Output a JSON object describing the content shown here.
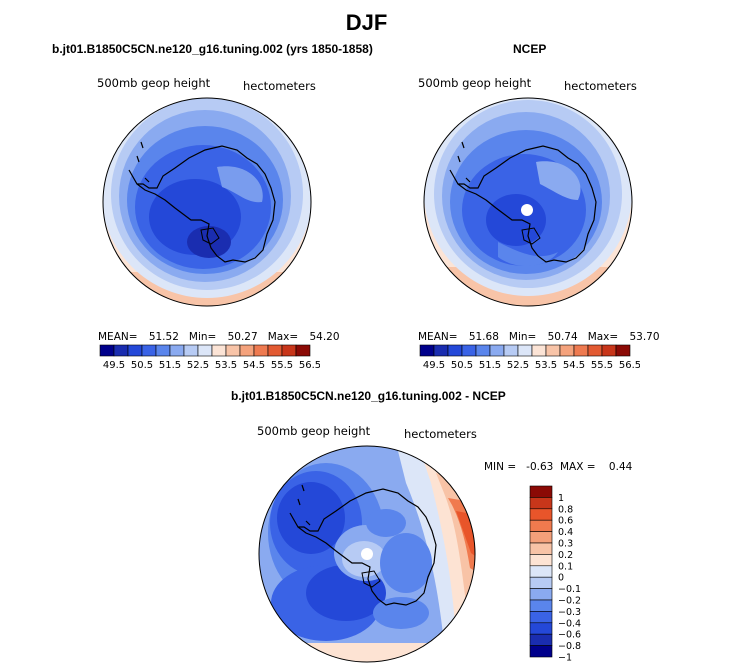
{
  "title": "DJF",
  "panels": [
    {
      "subtitle": "b.jt01.B1850C5CN.ne120_g16.tuning.002 (yrs 1850-1858)",
      "variable": "500mb geop height",
      "units": "hectometers",
      "stats": {
        "mean_label": "MEAN=",
        "mean": "51.52",
        "min_label": "Min=",
        "min": "50.27",
        "max_label": "Max=",
        "max": "54.20"
      },
      "colorbar_ticks": [
        "49.5",
        "50.5",
        "51.5",
        "52.5",
        "53.5",
        "54.5",
        "55.5",
        "56.5"
      ]
    },
    {
      "subtitle": "NCEP",
      "variable": "500mb geop height",
      "units": "hectometers",
      "stats": {
        "mean_label": "MEAN=",
        "mean": "51.68",
        "min_label": "Min=",
        "min": "50.74",
        "max_label": "Max=",
        "max": "53.70"
      },
      "colorbar_ticks": [
        "49.5",
        "50.5",
        "51.5",
        "52.5",
        "53.5",
        "54.5",
        "55.5",
        "56.5"
      ]
    }
  ],
  "diff": {
    "subtitle": "b.jt01.B1850C5CN.ne120_g16.tuning.002 - NCEP",
    "variable": "500mb geop height",
    "units": "hectometers",
    "stats": "MIN =   -0.63  MAX =    0.44",
    "colorbar_ticks": [
      "1",
      "0.8",
      "0.6",
      "0.4",
      "0.3",
      "0.2",
      "0.1",
      "0",
      "−0.1",
      "−0.2",
      "−0.3",
      "−0.4",
      "−0.6",
      "−0.8",
      "−1"
    ]
  },
  "palette": [
    "#00008b",
    "#1a2db0",
    "#2448d8",
    "#3a63e6",
    "#5a85ec",
    "#8aaaf0",
    "#b7cbf4",
    "#dce6f8",
    "#fce4d6",
    "#f8c4a8",
    "#f4a27c",
    "#ee7a50",
    "#e25a32",
    "#c8361a",
    "#8b0a05"
  ],
  "diff_palette": [
    "#8b0a05",
    "#c8361a",
    "#e8552a",
    "#f07a4e",
    "#f4a07a",
    "#f8c3a6",
    "#fde3d3",
    "#dce6f8",
    "#b7cbf4",
    "#8aaaf0",
    "#5a85ec",
    "#3a63e6",
    "#2448d8",
    "#1a2db0",
    "#00008b"
  ]
}
